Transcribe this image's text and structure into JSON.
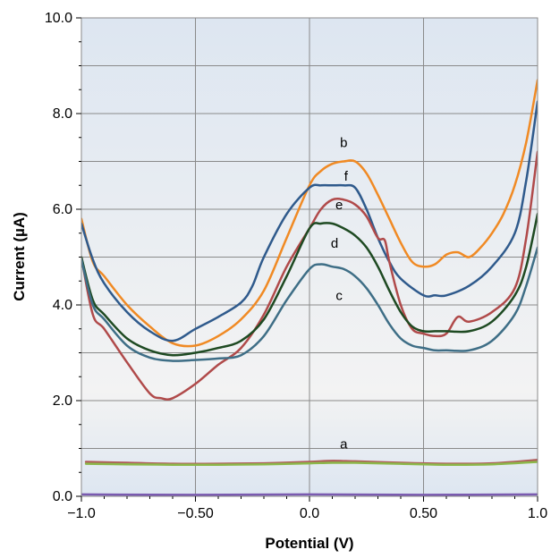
{
  "chart_data": {
    "type": "line",
    "title": "",
    "xlabel": "Potential (V)",
    "ylabel": "Current (µA)",
    "xlim": [
      -1.0,
      1.0
    ],
    "ylim": [
      0.0,
      10.0
    ],
    "x_ticks": [
      -1.0,
      -0.5,
      0.0,
      0.5,
      1.0
    ],
    "x_tick_labels": [
      "−1.0",
      "−0.50",
      "0.0",
      "0.50",
      "1.0"
    ],
    "y_ticks": [
      0.0,
      2.0,
      4.0,
      6.0,
      8.0,
      10.0
    ],
    "y_tick_labels": [
      "0.0",
      "2.0",
      "4.0",
      "6.0",
      "8.0",
      "10.0"
    ],
    "grid": true,
    "background_gradient": [
      "#dde6f1",
      "#f3f3f3",
      "#dde6f1"
    ],
    "series": [
      {
        "name": "a",
        "color": "#b05a5a",
        "x": [
          -0.98,
          -0.8,
          -0.6,
          -0.4,
          -0.2,
          0.0,
          0.1,
          0.2,
          0.4,
          0.6,
          0.8,
          1.0
        ],
        "y": [
          0.72,
          0.7,
          0.68,
          0.68,
          0.69,
          0.72,
          0.74,
          0.73,
          0.7,
          0.68,
          0.69,
          0.76
        ]
      },
      {
        "name": "",
        "color": "#8cb84a",
        "x": [
          -0.98,
          -0.8,
          -0.6,
          -0.4,
          -0.2,
          0.0,
          0.1,
          0.2,
          0.4,
          0.6,
          0.8,
          1.0
        ],
        "y": [
          0.68,
          0.67,
          0.66,
          0.66,
          0.67,
          0.69,
          0.7,
          0.7,
          0.68,
          0.66,
          0.67,
          0.72
        ]
      },
      {
        "name": "",
        "color": "#7a5ab0",
        "x": [
          -1.0,
          -0.5,
          0.0,
          0.5,
          1.0
        ],
        "y": [
          0.04,
          0.03,
          0.04,
          0.03,
          0.04
        ]
      },
      {
        "name": "b",
        "color": "#f08a24",
        "x": [
          -1.0,
          -0.95,
          -0.9,
          -0.8,
          -0.7,
          -0.6,
          -0.5,
          -0.4,
          -0.3,
          -0.2,
          -0.1,
          0.0,
          0.05,
          0.1,
          0.15,
          0.2,
          0.25,
          0.3,
          0.35,
          0.4,
          0.45,
          0.5,
          0.55,
          0.6,
          0.65,
          0.7,
          0.75,
          0.8,
          0.85,
          0.9,
          0.95,
          1.0
        ],
        "y": [
          5.8,
          4.9,
          4.6,
          4.0,
          3.55,
          3.2,
          3.15,
          3.35,
          3.7,
          4.3,
          5.4,
          6.5,
          6.8,
          6.95,
          7.0,
          7.0,
          6.75,
          6.3,
          5.8,
          5.3,
          4.9,
          4.8,
          4.85,
          5.05,
          5.1,
          5.0,
          5.2,
          5.5,
          5.9,
          6.5,
          7.4,
          8.7
        ]
      },
      {
        "name": "f",
        "color": "#2f5a8c",
        "x": [
          -1.0,
          -0.95,
          -0.9,
          -0.8,
          -0.7,
          -0.6,
          -0.5,
          -0.4,
          -0.3,
          -0.25,
          -0.2,
          -0.1,
          0.0,
          0.05,
          0.1,
          0.15,
          0.2,
          0.25,
          0.3,
          0.35,
          0.4,
          0.5,
          0.55,
          0.6,
          0.7,
          0.8,
          0.9,
          0.95,
          1.0
        ],
        "y": [
          5.7,
          4.95,
          4.45,
          3.85,
          3.45,
          3.25,
          3.5,
          3.75,
          4.05,
          4.4,
          5.0,
          5.9,
          6.45,
          6.5,
          6.5,
          6.5,
          6.45,
          6.0,
          5.4,
          4.9,
          4.55,
          4.2,
          4.2,
          4.2,
          4.4,
          4.8,
          5.5,
          6.6,
          8.25
        ]
      },
      {
        "name": "e",
        "color": "#b04a4a",
        "x": [
          -1.0,
          -0.95,
          -0.9,
          -0.8,
          -0.7,
          -0.65,
          -0.6,
          -0.5,
          -0.4,
          -0.3,
          -0.2,
          -0.1,
          0.0,
          0.05,
          0.1,
          0.15,
          0.2,
          0.25,
          0.3,
          0.33,
          0.35,
          0.4,
          0.45,
          0.5,
          0.55,
          0.6,
          0.65,
          0.7,
          0.8,
          0.9,
          0.95,
          1.0
        ],
        "y": [
          5.0,
          3.8,
          3.5,
          2.8,
          2.15,
          2.05,
          2.05,
          2.35,
          2.75,
          3.1,
          3.8,
          4.8,
          5.6,
          6.0,
          6.2,
          6.2,
          6.1,
          5.85,
          5.4,
          5.35,
          4.9,
          4.0,
          3.5,
          3.4,
          3.35,
          3.4,
          3.75,
          3.65,
          3.85,
          4.35,
          5.4,
          7.2
        ]
      },
      {
        "name": "d",
        "color": "#1e4a22",
        "x": [
          -1.0,
          -0.95,
          -0.9,
          -0.8,
          -0.7,
          -0.6,
          -0.5,
          -0.4,
          -0.3,
          -0.2,
          -0.1,
          0.0,
          0.05,
          0.1,
          0.15,
          0.2,
          0.25,
          0.3,
          0.35,
          0.4,
          0.45,
          0.5,
          0.55,
          0.6,
          0.7,
          0.8,
          0.9,
          0.95,
          1.0
        ],
        "y": [
          5.0,
          4.1,
          3.8,
          3.3,
          3.05,
          2.95,
          3.0,
          3.1,
          3.25,
          3.7,
          4.6,
          5.6,
          5.7,
          5.7,
          5.6,
          5.45,
          5.2,
          4.8,
          4.3,
          3.85,
          3.55,
          3.45,
          3.45,
          3.45,
          3.45,
          3.65,
          4.2,
          4.8,
          5.9
        ]
      },
      {
        "name": "c",
        "color": "#3e6e86",
        "x": [
          -1.0,
          -0.95,
          -0.9,
          -0.8,
          -0.7,
          -0.6,
          -0.5,
          -0.4,
          -0.3,
          -0.2,
          -0.1,
          0.0,
          0.05,
          0.1,
          0.15,
          0.2,
          0.25,
          0.3,
          0.35,
          0.4,
          0.45,
          0.5,
          0.55,
          0.6,
          0.7,
          0.8,
          0.9,
          0.95,
          1.0
        ],
        "y": [
          4.95,
          4.0,
          3.7,
          3.15,
          2.9,
          2.83,
          2.85,
          2.88,
          2.95,
          3.35,
          4.1,
          4.75,
          4.85,
          4.8,
          4.75,
          4.6,
          4.35,
          4.0,
          3.6,
          3.3,
          3.15,
          3.1,
          3.05,
          3.05,
          3.05,
          3.25,
          3.8,
          4.4,
          5.2
        ]
      }
    ],
    "series_labels": [
      {
        "text": "b",
        "x": 0.15,
        "y": 7.3
      },
      {
        "text": "f",
        "x": 0.16,
        "y": 6.6
      },
      {
        "text": "e",
        "x": 0.13,
        "y": 6.0
      },
      {
        "text": "d",
        "x": 0.11,
        "y": 5.2
      },
      {
        "text": "c",
        "x": 0.13,
        "y": 4.1
      },
      {
        "text": "a",
        "x": 0.15,
        "y": 1.0
      }
    ]
  }
}
